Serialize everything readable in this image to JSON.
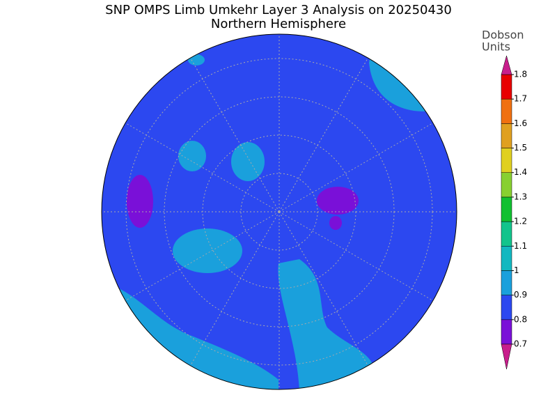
{
  "header": {
    "title": "SNP OMPS Limb Umkehr Layer 3 Analysis on 20250430",
    "subtitle": "Northern Hemisphere"
  },
  "colorbar": {
    "label": [
      "Dobson",
      "Units"
    ],
    "ticks": [
      0.7,
      0.8,
      0.9,
      1,
      1.1,
      1.2,
      1.3,
      1.4,
      1.5,
      1.6,
      1.7,
      1.8
    ],
    "colors": [
      "#7a10d8",
      "#2c48f0",
      "#1aa0dc",
      "#12b8c0",
      "#12c48c",
      "#10c030",
      "#88d030",
      "#e0d020",
      "#e0a020",
      "#f07010",
      "#e80000"
    ],
    "extend_colors": [
      "#c81e8c",
      "#c81e8c"
    ]
  }
}
